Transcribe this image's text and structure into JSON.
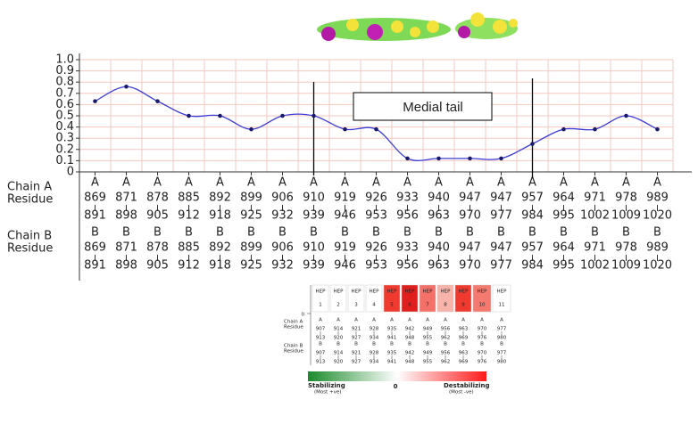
{
  "chart_data": {
    "type": "line",
    "ylim": [
      0,
      1
    ],
    "yticks": [
      0,
      0.1,
      0.2,
      0.3,
      0.4,
      0.5,
      0.6,
      0.7,
      0.8,
      0.9,
      {
        "value": 1,
        "label": "1.0"
      }
    ],
    "grid": true,
    "color": "#3b3bd6",
    "row_labels": {
      "chain_a": [
        "Chain A",
        "Residue"
      ],
      "chain_b": [
        "Chain B",
        "Residue"
      ]
    },
    "chain_a_letter": "A",
    "chain_b_letter": "B",
    "categories": [
      "869",
      "871",
      "878",
      "885",
      "892",
      "899",
      "906",
      "910",
      "919",
      "926",
      "933",
      "940",
      "947",
      "947",
      "957",
      "964",
      "971",
      "978",
      "989"
    ],
    "category_ends": [
      "891",
      "898",
      "905",
      "912",
      "918",
      "925",
      "932",
      "939",
      "946",
      "953",
      "956",
      "963",
      "970",
      "977",
      "984",
      "995",
      "1002",
      "1009",
      "1020"
    ],
    "values": [
      0.63,
      0.76,
      0.63,
      0.5,
      0.5,
      0.38,
      0.5,
      0.5,
      0.38,
      0.38,
      0.12,
      0.12,
      0.12,
      0.12,
      0.25,
      0.38,
      0.38,
      0.5,
      0.38
    ],
    "annotation": "Medial tail"
  },
  "hep_table": {
    "header_word": "HEP",
    "zero_label": "0",
    "chain_a_letter": "A",
    "chain_b_letter": "B",
    "row_labels": {
      "chain_a": [
        "Chain A",
        "Residue"
      ],
      "chain_b": [
        "Chain B",
        "Residue"
      ]
    },
    "columns": [
      {
        "number": "1",
        "start": "907",
        "end": "913",
        "color": "#ffffff"
      },
      {
        "number": "2",
        "start": "914",
        "end": "920",
        "color": "#ffffff"
      },
      {
        "number": "3",
        "start": "921",
        "end": "927",
        "color": "#ffffff"
      },
      {
        "number": "4",
        "start": "928",
        "end": "934",
        "color": "#ffffff"
      },
      {
        "number": "5",
        "start": "935",
        "end": "941",
        "color": "#f03a30"
      },
      {
        "number": "6",
        "start": "942",
        "end": "948",
        "color": "#e01e1e"
      },
      {
        "number": "7",
        "start": "949",
        "end": "955",
        "color": "#f47068"
      },
      {
        "number": "8",
        "start": "956",
        "end": "962",
        "color": "#f8b4aa"
      },
      {
        "number": "9",
        "start": "963",
        "end": "969",
        "color": "#f03a30"
      },
      {
        "number": "10",
        "start": "970",
        "end": "976",
        "color": "#f47a70"
      },
      {
        "number": "11",
        "start": "977",
        "end": "980",
        "color": "#ffffff"
      }
    ],
    "scale": {
      "left": "Stabilizing",
      "left_note": "(Most +ve)",
      "center": "0",
      "right": "Destabilizing",
      "right_note": "(Most -ve)",
      "colors": [
        "#1a8a2a",
        "#ffffff",
        "#ff1a1a"
      ]
    }
  }
}
